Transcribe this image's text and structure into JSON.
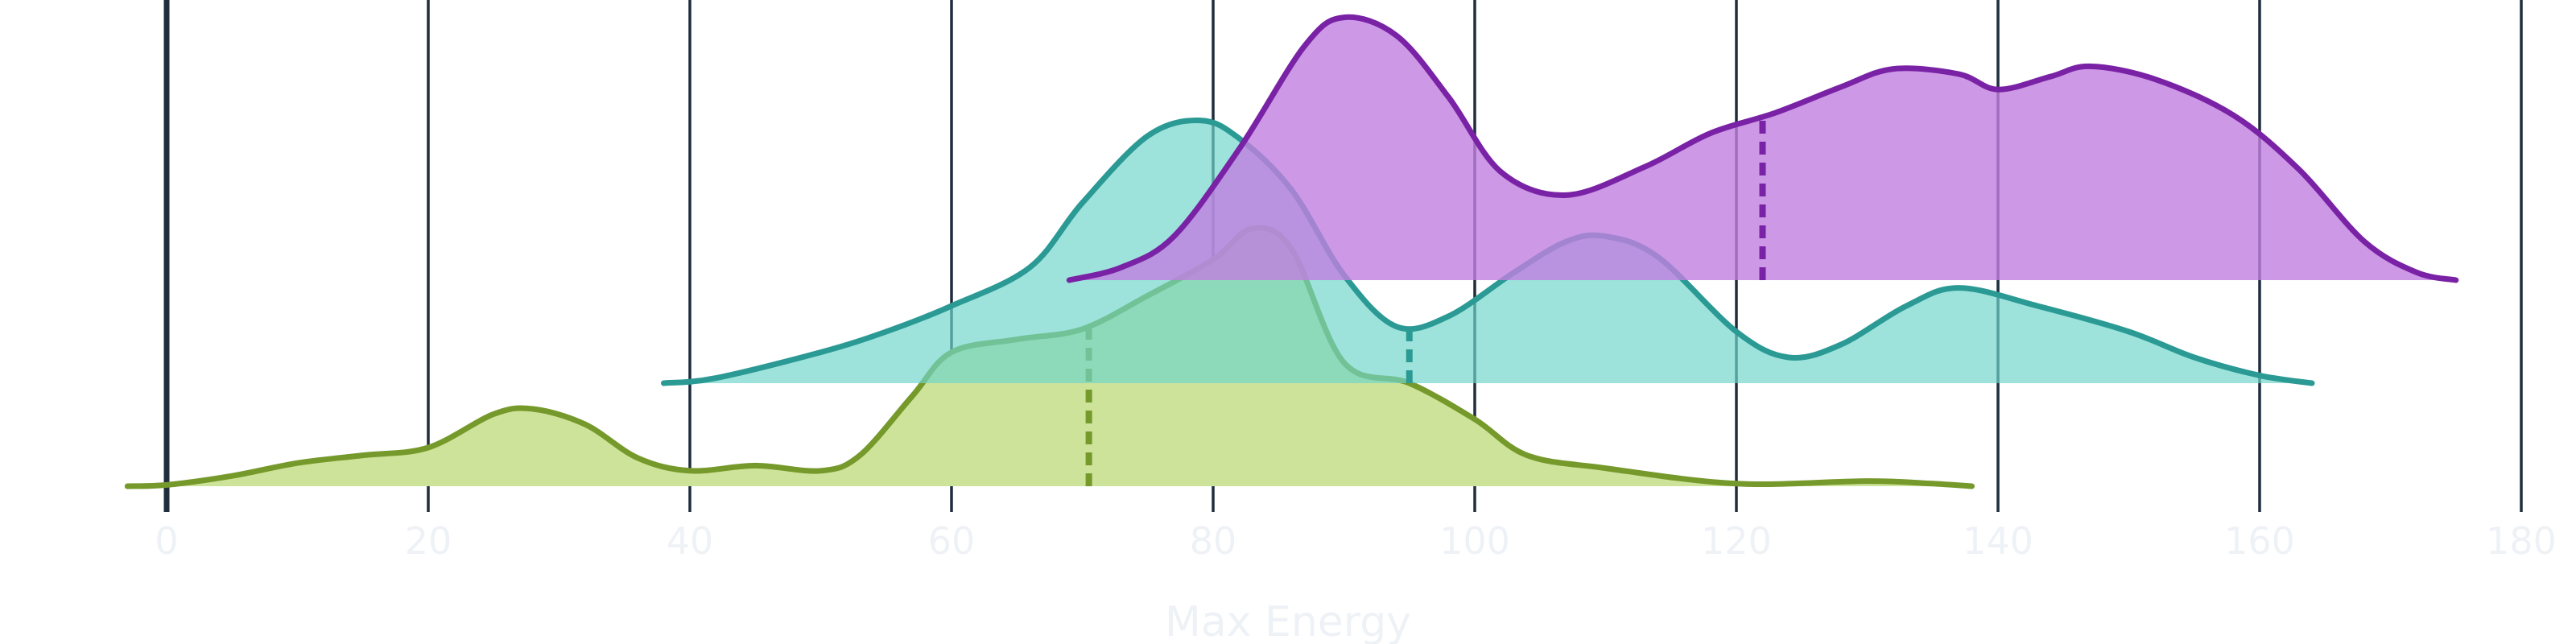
{
  "chart_data": {
    "type": "area",
    "subtype": "ridgeline",
    "title": "",
    "xlabel": "Max Energy",
    "ylabel": "",
    "xlim": [
      -3,
      183
    ],
    "x_ticks": [
      0,
      20,
      40,
      60,
      80,
      100,
      120,
      140,
      160,
      180
    ],
    "grid": true,
    "legend": "none",
    "colors": {
      "gridline": "#1f2d3d",
      "zero_line": "#1f2d3d",
      "tick_label": "#eef2f6",
      "axis_title": "#eef2f6"
    },
    "series": [
      {
        "fill": "#cde39a",
        "stroke": "#76992b",
        "fill_opacity": 1.0,
        "median": 70.5,
        "points": [
          [
            -3,
            0.0
          ],
          [
            0,
            0.005
          ],
          [
            5,
            0.04
          ],
          [
            10,
            0.09
          ],
          [
            15,
            0.12
          ],
          [
            20,
            0.15
          ],
          [
            25,
            0.28
          ],
          [
            28,
            0.3
          ],
          [
            32,
            0.24
          ],
          [
            36,
            0.11
          ],
          [
            40,
            0.06
          ],
          [
            45,
            0.08
          ],
          [
            50,
            0.06
          ],
          [
            53,
            0.12
          ],
          [
            57,
            0.35
          ],
          [
            60,
            0.52
          ],
          [
            65,
            0.57
          ],
          [
            70,
            0.61
          ],
          [
            75,
            0.74
          ],
          [
            80,
            0.88
          ],
          [
            83,
            1.0
          ],
          [
            86,
            0.92
          ],
          [
            90,
            0.48
          ],
          [
            95,
            0.4
          ],
          [
            100,
            0.26
          ],
          [
            104,
            0.12
          ],
          [
            110,
            0.07
          ],
          [
            120,
            0.01
          ],
          [
            130,
            0.02
          ],
          [
            135,
            0.01
          ],
          [
            138,
            0.0
          ]
        ]
      },
      {
        "fill": "#6fd6cc",
        "stroke": "#2b9a94",
        "fill_opacity": 0.68,
        "median": 95,
        "points": [
          [
            38,
            0.0
          ],
          [
            42,
            0.02
          ],
          [
            50,
            0.12
          ],
          [
            55,
            0.2
          ],
          [
            60,
            0.3
          ],
          [
            66,
            0.45
          ],
          [
            70,
            0.7
          ],
          [
            75,
            0.96
          ],
          [
            79,
            1.02
          ],
          [
            82,
            0.95
          ],
          [
            86,
            0.75
          ],
          [
            90,
            0.42
          ],
          [
            94,
            0.22
          ],
          [
            98,
            0.26
          ],
          [
            103,
            0.43
          ],
          [
            107,
            0.55
          ],
          [
            110,
            0.57
          ],
          [
            114,
            0.49
          ],
          [
            120,
            0.2
          ],
          [
            124,
            0.1
          ],
          [
            128,
            0.15
          ],
          [
            133,
            0.3
          ],
          [
            137,
            0.37
          ],
          [
            143,
            0.3
          ],
          [
            150,
            0.2
          ],
          [
            155,
            0.1
          ],
          [
            160,
            0.03
          ],
          [
            164,
            0.0
          ]
        ]
      },
      {
        "fill": "#c07ee0",
        "stroke": "#7a22a6",
        "fill_opacity": 0.8,
        "median": 122,
        "points": [
          [
            69,
            0.0
          ],
          [
            73,
            0.05
          ],
          [
            77,
            0.17
          ],
          [
            82,
            0.51
          ],
          [
            87,
            0.91
          ],
          [
            90,
            1.02
          ],
          [
            94,
            0.95
          ],
          [
            98,
            0.71
          ],
          [
            102,
            0.42
          ],
          [
            107,
            0.33
          ],
          [
            113,
            0.44
          ],
          [
            118,
            0.57
          ],
          [
            123,
            0.65
          ],
          [
            128,
            0.75
          ],
          [
            132,
            0.82
          ],
          [
            137,
            0.8
          ],
          [
            140,
            0.74
          ],
          [
            144,
            0.79
          ],
          [
            147,
            0.83
          ],
          [
            152,
            0.78
          ],
          [
            158,
            0.64
          ],
          [
            163,
            0.43
          ],
          [
            168,
            0.15
          ],
          [
            172,
            0.03
          ],
          [
            175,
            0.0
          ]
        ]
      }
    ]
  }
}
